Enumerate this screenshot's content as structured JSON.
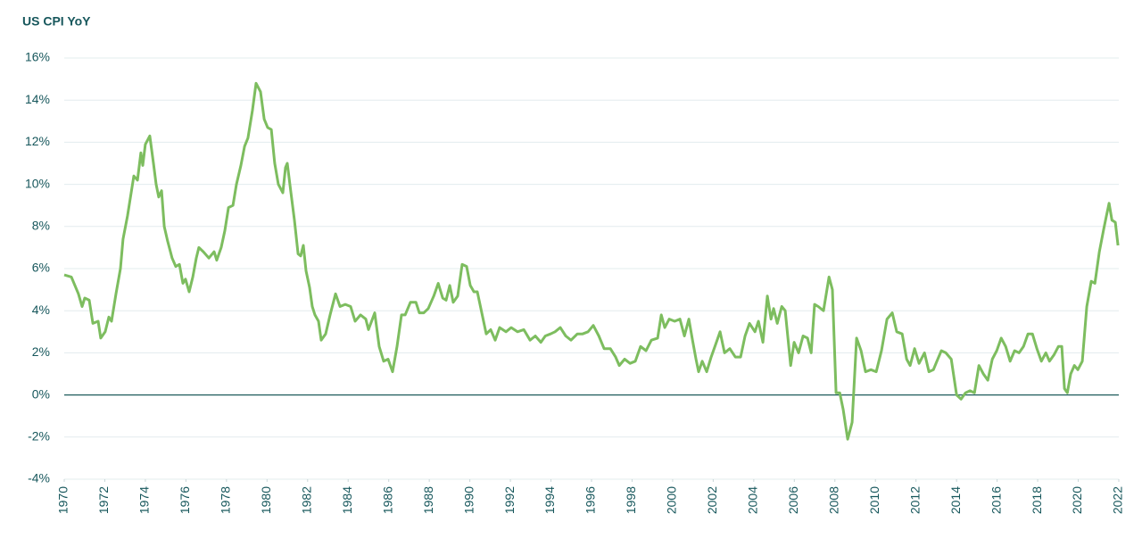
{
  "chart_data": {
    "type": "line",
    "title": "US CPI YoY",
    "x": [
      1970.0,
      1970.35,
      1970.7,
      1970.88,
      1971.01,
      1971.23,
      1971.41,
      1971.67,
      1971.8,
      1972.02,
      1972.2,
      1972.33,
      1972.55,
      1972.77,
      1972.9,
      1973.12,
      1973.43,
      1973.61,
      1973.78,
      1973.87,
      1974.0,
      1974.22,
      1974.4,
      1974.53,
      1974.66,
      1974.8,
      1974.93,
      1975.1,
      1975.32,
      1975.5,
      1975.68,
      1975.85,
      1975.98,
      1976.16,
      1976.34,
      1976.51,
      1976.64,
      1976.86,
      1977.13,
      1977.39,
      1977.52,
      1977.74,
      1977.92,
      1978.1,
      1978.32,
      1978.49,
      1978.71,
      1978.89,
      1979.06,
      1979.28,
      1979.46,
      1979.68,
      1979.86,
      1980.03,
      1980.21,
      1980.38,
      1980.56,
      1980.78,
      1980.91,
      1981.0,
      1981.18,
      1981.35,
      1981.53,
      1981.66,
      1981.79,
      1981.92,
      1982.1,
      1982.23,
      1982.36,
      1982.54,
      1982.67,
      1982.89,
      1983.11,
      1983.38,
      1983.6,
      1983.86,
      1984.12,
      1984.34,
      1984.61,
      1984.87,
      1985.0,
      1985.31,
      1985.53,
      1985.75,
      1985.97,
      1986.19,
      1986.41,
      1986.63,
      1986.81,
      1987.07,
      1987.34,
      1987.51,
      1987.73,
      1987.95,
      1988.22,
      1988.44,
      1988.66,
      1988.83,
      1989.01,
      1989.18,
      1989.4,
      1989.62,
      1989.84,
      1990.02,
      1990.2,
      1990.37,
      1990.59,
      1990.81,
      1991.03,
      1991.25,
      1991.47,
      1991.78,
      1992.04,
      1992.35,
      1992.66,
      1992.97,
      1993.23,
      1993.5,
      1993.72,
      1993.98,
      1994.2,
      1994.46,
      1994.73,
      1994.99,
      1995.3,
      1995.56,
      1995.83,
      1996.09,
      1996.36,
      1996.62,
      1996.93,
      1997.19,
      1997.37,
      1997.63,
      1997.9,
      1998.16,
      1998.42,
      1998.69,
      1998.95,
      1999.26,
      1999.44,
      1999.61,
      1999.83,
      2000.1,
      2000.36,
      2000.58,
      2000.8,
      2000.98,
      2001.15,
      2001.28,
      2001.46,
      2001.68,
      2001.9,
      2002.12,
      2002.34,
      2002.56,
      2002.82,
      2003.09,
      2003.35,
      2003.57,
      2003.79,
      2004.06,
      2004.23,
      2004.45,
      2004.67,
      2004.85,
      2004.98,
      2005.16,
      2005.38,
      2005.55,
      2005.82,
      2005.99,
      2006.21,
      2006.43,
      2006.65,
      2006.83,
      2007.0,
      2007.18,
      2007.44,
      2007.71,
      2007.88,
      2008.06,
      2008.24,
      2008.41,
      2008.63,
      2008.85,
      2009.07,
      2009.29,
      2009.51,
      2009.78,
      2010.04,
      2010.3,
      2010.57,
      2010.83,
      2011.05,
      2011.32,
      2011.54,
      2011.71,
      2011.93,
      2012.15,
      2012.42,
      2012.64,
      2012.86,
      2013.03,
      2013.25,
      2013.47,
      2013.74,
      2014.0,
      2014.22,
      2014.44,
      2014.66,
      2014.88,
      2015.1,
      2015.32,
      2015.54,
      2015.76,
      2015.98,
      2016.2,
      2016.42,
      2016.64,
      2016.86,
      2017.08,
      2017.3,
      2017.52,
      2017.74,
      2017.96,
      2018.18,
      2018.4,
      2018.58,
      2018.8,
      2019.02,
      2019.19,
      2019.32,
      2019.46,
      2019.63,
      2019.81,
      2019.98,
      2020.2,
      2020.42,
      2020.64,
      2020.82,
      2021.04,
      2021.26,
      2021.39,
      2021.52,
      2021.66,
      2021.83,
      2021.96
    ],
    "series": [
      {
        "color": "#7dbd5f",
        "values": [
          5.7,
          5.6,
          4.8,
          4.2,
          4.6,
          4.5,
          3.4,
          3.5,
          2.7,
          3.0,
          3.7,
          3.5,
          4.8,
          6.0,
          7.4,
          8.5,
          10.4,
          10.2,
          11.5,
          10.9,
          11.9,
          12.3,
          11.0,
          10.0,
          9.4,
          9.7,
          8.0,
          7.3,
          6.5,
          6.1,
          6.2,
          5.3,
          5.5,
          4.9,
          5.6,
          6.5,
          7.0,
          6.8,
          6.5,
          6.8,
          6.4,
          7.0,
          7.8,
          8.9,
          9.0,
          10.0,
          10.9,
          11.8,
          12.2,
          13.5,
          14.8,
          14.4,
          13.1,
          12.7,
          12.6,
          11.0,
          10.0,
          9.6,
          10.8,
          11.0,
          9.6,
          8.3,
          6.7,
          6.6,
          7.1,
          5.9,
          5.1,
          4.2,
          3.8,
          3.5,
          2.6,
          2.9,
          3.8,
          4.8,
          4.2,
          4.3,
          4.2,
          3.5,
          3.8,
          3.6,
          3.1,
          3.9,
          2.3,
          1.6,
          1.7,
          1.1,
          2.3,
          3.8,
          3.8,
          4.4,
          4.4,
          3.9,
          3.9,
          4.1,
          4.7,
          5.3,
          4.6,
          4.5,
          5.2,
          4.4,
          4.7,
          6.2,
          6.1,
          5.2,
          4.9,
          4.9,
          3.9,
          2.9,
          3.1,
          2.6,
          3.2,
          3.0,
          3.2,
          3.0,
          3.1,
          2.6,
          2.8,
          2.5,
          2.8,
          2.9,
          3.0,
          3.2,
          2.8,
          2.6,
          2.9,
          2.9,
          3.0,
          3.3,
          2.8,
          2.2,
          2.2,
          1.8,
          1.4,
          1.7,
          1.5,
          1.6,
          2.3,
          2.1,
          2.6,
          2.7,
          3.8,
          3.2,
          3.6,
          3.5,
          3.6,
          2.8,
          3.6,
          2.6,
          1.7,
          1.1,
          1.6,
          1.1,
          1.8,
          2.4,
          3.0,
          2.0,
          2.2,
          1.8,
          1.8,
          2.8,
          3.4,
          3.0,
          3.5,
          2.5,
          4.7,
          3.6,
          4.1,
          3.4,
          4.2,
          4.0,
          1.4,
          2.5,
          2.0,
          2.8,
          2.7,
          2.0,
          4.3,
          4.2,
          4.0,
          5.6,
          5.0,
          0.1,
          0.1,
          -0.7,
          -2.1,
          -1.3,
          2.7,
          2.1,
          1.1,
          1.2,
          1.1,
          2.1,
          3.6,
          3.9,
          3.0,
          2.9,
          1.7,
          1.4,
          2.2,
          1.5,
          2.0,
          1.1,
          1.2,
          1.6,
          2.1,
          2.0,
          1.7,
          0.0,
          -0.2,
          0.1,
          0.2,
          0.1,
          1.4,
          1.0,
          0.7,
          1.7,
          2.1,
          2.7,
          2.3,
          1.6,
          2.1,
          2.0,
          2.3,
          2.9,
          2.9,
          2.2,
          1.6,
          2.0,
          1.6,
          1.9,
          2.3,
          2.3,
          0.3,
          0.1,
          1.0,
          1.4,
          1.2,
          1.6,
          4.2,
          5.4,
          5.3,
          6.8,
          7.9,
          8.5,
          9.1,
          8.3,
          8.2,
          7.1
        ]
      }
    ],
    "xlim": [
      1970,
      2022
    ],
    "xticks": [
      1970,
      1972,
      1974,
      1976,
      1978,
      1980,
      1982,
      1984,
      1986,
      1988,
      1990,
      1992,
      1994,
      1996,
      1998,
      2000,
      2002,
      2004,
      2006,
      2008,
      2010,
      2012,
      2014,
      2016,
      2018,
      2020,
      2022
    ],
    "ylim": [
      -4,
      16
    ],
    "yticks": [
      {
        "value": -4,
        "label": "-4%"
      },
      {
        "value": -2,
        "label": "-2%"
      },
      {
        "value": 0,
        "label": "0%"
      },
      {
        "value": 2,
        "label": "2%"
      },
      {
        "value": 4,
        "label": "4%"
      },
      {
        "value": 6,
        "label": "6%"
      },
      {
        "value": 8,
        "label": "8%"
      },
      {
        "value": 10,
        "label": "10%"
      },
      {
        "value": 12,
        "label": "12%"
      },
      {
        "value": 14,
        "label": "14%"
      },
      {
        "value": 16,
        "label": "16%"
      }
    ],
    "grid": true
  }
}
